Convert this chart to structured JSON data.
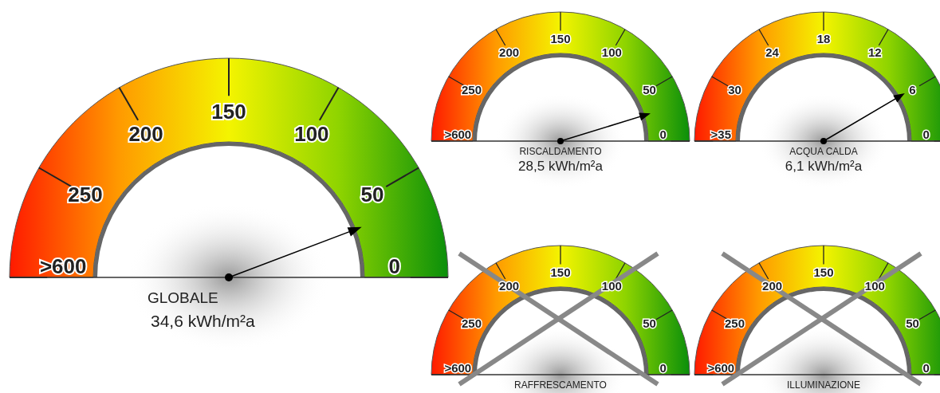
{
  "chart_data": [
    {
      "type": "other",
      "title": "GLOBALE",
      "values": [
        34.6
      ],
      "value_labels": [
        "34,6 kWh/m²a"
      ],
      "annotations": [
        "0",
        "50",
        "100",
        "150",
        "200",
        "250",
        ">600"
      ]
    },
    {
      "type": "other",
      "title": "RISCALDAMENTO",
      "values": [
        28.5
      ],
      "value_labels": [
        "28,5 kWh/m²a"
      ],
      "annotations": [
        "0",
        "50",
        "100",
        "150",
        "200",
        "250",
        ">600"
      ]
    },
    {
      "type": "other",
      "title": "ACQUA CALDA",
      "values": [
        6.1
      ],
      "value_labels": [
        "6,1 kWh/m²a"
      ],
      "annotations": [
        "0",
        "6",
        "12",
        "18",
        "24",
        "30",
        ">35"
      ]
    },
    {
      "type": "other",
      "title": "RAFFRESCAMENTO",
      "annotations": [
        "0",
        "50",
        "100",
        "150",
        "200",
        "250",
        ">600"
      ]
    },
    {
      "type": "other",
      "title": "ILLUMINAZIONE",
      "annotations": [
        "0",
        "50",
        "100",
        "150",
        "200",
        "250",
        ">600"
      ]
    }
  ]
}
